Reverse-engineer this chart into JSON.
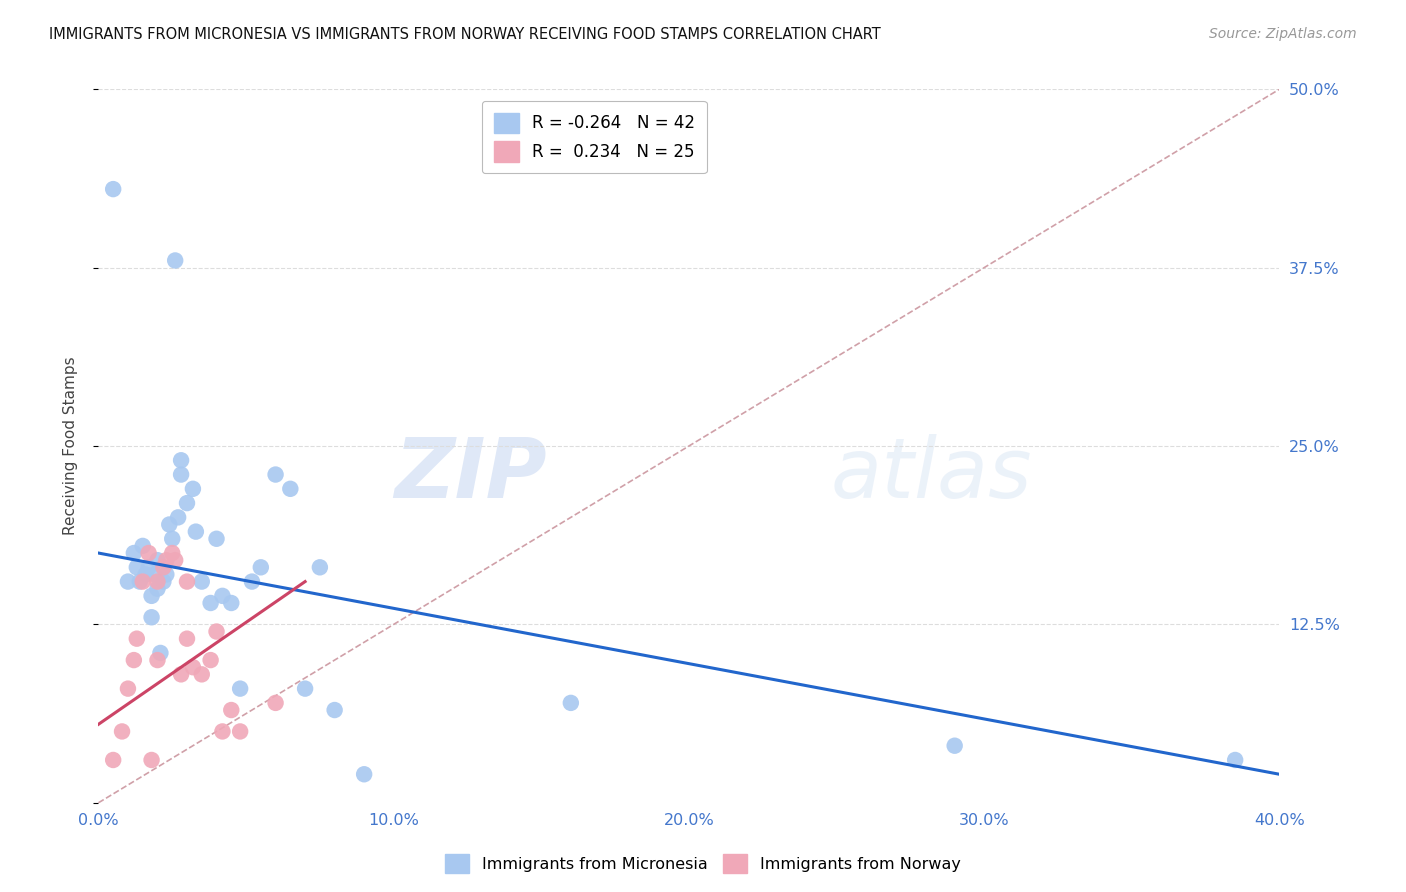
{
  "title": "IMMIGRANTS FROM MICRONESIA VS IMMIGRANTS FROM NORWAY RECEIVING FOOD STAMPS CORRELATION CHART",
  "source": "Source: ZipAtlas.com",
  "ylabel": "Receiving Food Stamps",
  "legend_label_blue": "Immigrants from Micronesia",
  "legend_label_pink": "Immigrants from Norway",
  "r_blue": -0.264,
  "n_blue": 42,
  "r_pink": 0.234,
  "n_pink": 25,
  "xlim": [
    0.0,
    0.4
  ],
  "ylim": [
    0.0,
    0.5
  ],
  "yticks": [
    0.0,
    0.125,
    0.25,
    0.375,
    0.5
  ],
  "ytick_labels": [
    "",
    "12.5%",
    "25.0%",
    "37.5%",
    "50.0%"
  ],
  "xticks": [
    0.0,
    0.1,
    0.2,
    0.3,
    0.4
  ],
  "xtick_labels": [
    "0.0%",
    "10.0%",
    "20.0%",
    "30.0%",
    "40.0%"
  ],
  "blue_scatter_color": "#a8c8f0",
  "pink_scatter_color": "#f0a8b8",
  "trend_blue_color": "#2266cc",
  "trend_pink_color": "#cc4466",
  "diag_color": "#d0a0a8",
  "axis_label_color": "#4477cc",
  "watermark_color": "#c8d8f0",
  "micronesia_x": [
    0.005,
    0.01,
    0.012,
    0.013,
    0.014,
    0.015,
    0.016,
    0.017,
    0.018,
    0.018,
    0.019,
    0.02,
    0.02,
    0.021,
    0.022,
    0.023,
    0.024,
    0.025,
    0.026,
    0.027,
    0.028,
    0.028,
    0.03,
    0.032,
    0.033,
    0.035,
    0.038,
    0.04,
    0.042,
    0.045,
    0.048,
    0.052,
    0.055,
    0.06,
    0.065,
    0.07,
    0.075,
    0.08,
    0.09,
    0.16,
    0.29,
    0.385
  ],
  "micronesia_y": [
    0.43,
    0.155,
    0.175,
    0.165,
    0.155,
    0.18,
    0.16,
    0.165,
    0.13,
    0.145,
    0.16,
    0.17,
    0.15,
    0.105,
    0.155,
    0.16,
    0.195,
    0.185,
    0.38,
    0.2,
    0.23,
    0.24,
    0.21,
    0.22,
    0.19,
    0.155,
    0.14,
    0.185,
    0.145,
    0.14,
    0.08,
    0.155,
    0.165,
    0.23,
    0.22,
    0.08,
    0.165,
    0.065,
    0.02,
    0.07,
    0.04,
    0.03
  ],
  "norway_x": [
    0.005,
    0.008,
    0.01,
    0.012,
    0.013,
    0.015,
    0.017,
    0.018,
    0.02,
    0.02,
    0.022,
    0.023,
    0.025,
    0.026,
    0.028,
    0.03,
    0.03,
    0.032,
    0.035,
    0.038,
    0.04,
    0.042,
    0.045,
    0.048,
    0.06
  ],
  "norway_y": [
    0.03,
    0.05,
    0.08,
    0.1,
    0.115,
    0.155,
    0.175,
    0.03,
    0.155,
    0.1,
    0.165,
    0.17,
    0.175,
    0.17,
    0.09,
    0.155,
    0.115,
    0.095,
    0.09,
    0.1,
    0.12,
    0.05,
    0.065,
    0.05,
    0.07
  ],
  "blue_trend_x": [
    0.0,
    0.4
  ],
  "blue_trend_y": [
    0.175,
    0.02
  ],
  "pink_trend_x": [
    0.0,
    0.07
  ],
  "pink_trend_y": [
    0.055,
    0.155
  ]
}
